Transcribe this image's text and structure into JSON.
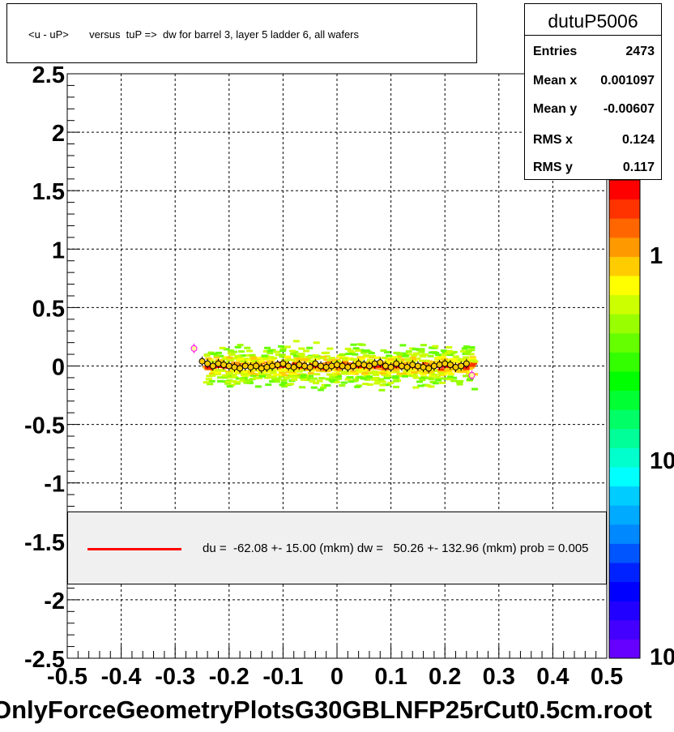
{
  "title": "<u - uP>       versus  tuP =>  dw for barrel 3, layer 5 ladder 6, all wafers",
  "filename": "OnlyForceGeometryPlotsG30GBLNFP25rCut0.5cm.root",
  "stats": {
    "name": "dutuP5006",
    "rows": [
      {
        "key": "Entries",
        "value": "2473"
      },
      {
        "key": "Mean x",
        "value": "0.001097"
      },
      {
        "key": "Mean y",
        "value": "-0.00607"
      },
      {
        "key": "RMS x",
        "value": "0.124"
      },
      {
        "key": "RMS y",
        "value": "0.117"
      }
    ]
  },
  "legend": {
    "text": "du =  -62.08 +- 15.00 (mkm) dw =   50.26 +- 132.96 (mkm) prob = 0.005",
    "line_color": "#ff0000"
  },
  "colors": {
    "fit_line": "#ff0000",
    "profile_marker": "#000000",
    "outlier_marker": "#ff00ff"
  },
  "chart_data": {
    "type": "heatmap",
    "xlim": [
      -0.5,
      0.5
    ],
    "ylim": [
      -2.5,
      2.5
    ],
    "x_ticks": [
      "-0.5",
      "-0.4",
      "-0.3",
      "-0.2",
      "-0.1",
      "0",
      "0.1",
      "0.2",
      "0.3",
      "0.4",
      "0.5"
    ],
    "y_ticks": [
      "2.5",
      "2",
      "1.5",
      "1",
      "0.5",
      "0",
      "-0.5",
      "-1",
      "-1.5",
      "-2",
      "-2.5"
    ],
    "grid": true,
    "colorbar_labels": [
      "1",
      "10",
      "10"
    ],
    "profile_x": [
      -0.265,
      -0.25,
      -0.24,
      -0.23,
      -0.22,
      -0.21,
      -0.2,
      -0.19,
      -0.18,
      -0.17,
      -0.16,
      -0.15,
      -0.14,
      -0.13,
      -0.12,
      -0.11,
      -0.1,
      -0.09,
      -0.08,
      -0.07,
      -0.06,
      -0.05,
      -0.04,
      -0.03,
      -0.02,
      -0.01,
      0.0,
      0.01,
      0.02,
      0.03,
      0.04,
      0.05,
      0.06,
      0.07,
      0.08,
      0.09,
      0.1,
      0.11,
      0.12,
      0.13,
      0.14,
      0.15,
      0.16,
      0.17,
      0.18,
      0.19,
      0.2,
      0.21,
      0.22,
      0.23,
      0.24,
      0.25
    ],
    "profile_y": [
      0.15,
      0.04,
      0.02,
      0.0,
      0.02,
      0.01,
      0.0,
      -0.01,
      -0.02,
      0.0,
      -0.01,
      0.0,
      -0.02,
      -0.01,
      0.0,
      0.01,
      0.02,
      0.0,
      -0.01,
      0.01,
      0.0,
      -0.01,
      0.02,
      0.0,
      -0.01,
      0.0,
      0.01,
      0.0,
      -0.01,
      0.0,
      0.02,
      0.01,
      0.0,
      0.02,
      0.03,
      0.0,
      -0.01,
      0.02,
      0.0,
      -0.01,
      0.01,
      0.0,
      -0.01,
      -0.02,
      0.0,
      0.01,
      0.02,
      0.01,
      -0.01,
      0.0,
      0.02,
      -0.08
    ],
    "fit_line": {
      "x": [
        -0.245,
        0.245
      ],
      "y": [
        -0.005,
        -0.005
      ]
    }
  }
}
